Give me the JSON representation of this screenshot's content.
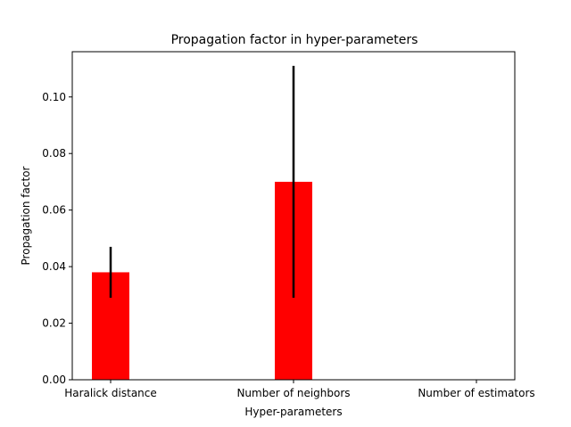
{
  "chart_data": {
    "type": "bar",
    "title": "Propagation factor in hyper-parameters",
    "xlabel": "Hyper-parameters",
    "ylabel": "Propagation factor",
    "categories": [
      "Haralick distance",
      "Number of neighbors",
      "Number of estimators"
    ],
    "values": [
      0.038,
      0.07,
      0.0
    ],
    "errors": [
      0.009,
      0.041,
      0.0
    ],
    "ylim": [
      0,
      0.116
    ],
    "yticks": [
      0.0,
      0.02,
      0.04,
      0.06,
      0.08,
      0.1
    ],
    "ytick_labels": [
      "0.00",
      "0.02",
      "0.04",
      "0.06",
      "0.08",
      "0.10"
    ],
    "grid": false,
    "colors": {
      "bar": "#ff0000",
      "errorbar": "#000000"
    }
  }
}
